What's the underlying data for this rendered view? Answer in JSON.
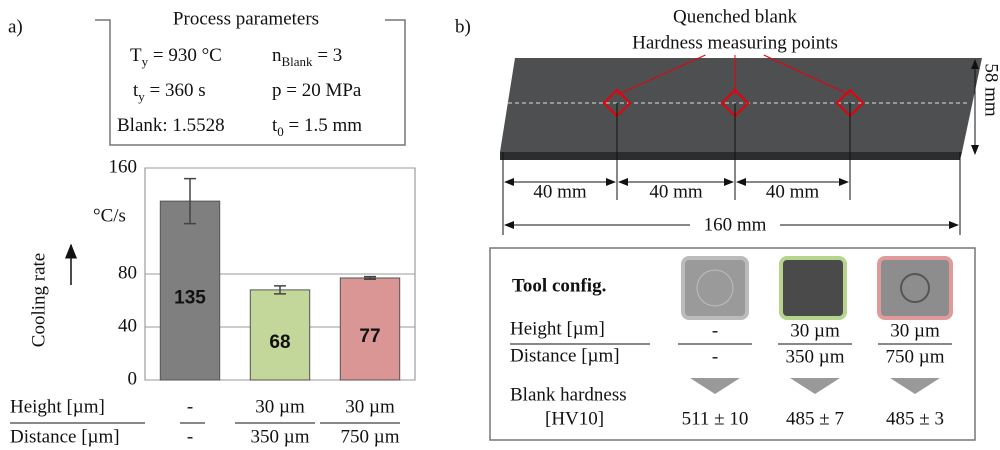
{
  "panel_a": {
    "label": "a)",
    "params": {
      "title": "Process parameters",
      "items": [
        {
          "base": "T",
          "sub": "y",
          "rest": " = 930 °C"
        },
        {
          "base": "n",
          "sub": "Blank",
          "rest": " = 3"
        },
        {
          "base": "t",
          "sub": "y",
          "rest": " = 360 s"
        },
        {
          "base": "p = 20 MPa"
        },
        {
          "base": "Blank: 1.5528"
        },
        {
          "base": "t",
          "sub": "0",
          "rest": " = 1.5 mm"
        }
      ]
    }
  },
  "chart_data": {
    "type": "bar",
    "y_label": "Cooling rate",
    "y_unit": "°C/s",
    "categories": [
      null,
      null,
      null
    ],
    "values": [
      135,
      68,
      77
    ],
    "errors": [
      17,
      3,
      1
    ],
    "colors": [
      "#7f7f7f",
      "#c4d79b",
      "#d99694"
    ],
    "ylim": [
      0,
      160
    ],
    "yticks": [
      0,
      40,
      80,
      160
    ],
    "grid": true,
    "table": [
      {
        "label": "Height [µm]",
        "cells": [
          "-",
          "30 µm",
          "30 µm"
        ]
      },
      {
        "label": "Distance [µm]",
        "cells": [
          "-",
          "350 µm",
          "750 µm"
        ]
      }
    ]
  },
  "panel_b": {
    "label": "b)",
    "title": "Quenched blank",
    "subtitle": "Hardness measuring points",
    "width_dim": "58 mm",
    "spacings": [
      "40 mm",
      "40 mm",
      "40 mm"
    ],
    "length": "160 mm",
    "table": {
      "title": "Tool config.",
      "row_labels": [
        "Height [µm]",
        "Distance [µm]"
      ],
      "hardness_label": [
        "Blank hardness",
        "[HV10]"
      ],
      "columns": [
        {
          "height": "-",
          "distance": "-",
          "hardness": "511 ± 10"
        },
        {
          "height": "30 µm",
          "distance": "350 µm",
          "hardness": "485 ± 7"
        },
        {
          "height": "30 µm",
          "distance": "750 µm",
          "hardness": "485 ± 3"
        }
      ]
    }
  }
}
